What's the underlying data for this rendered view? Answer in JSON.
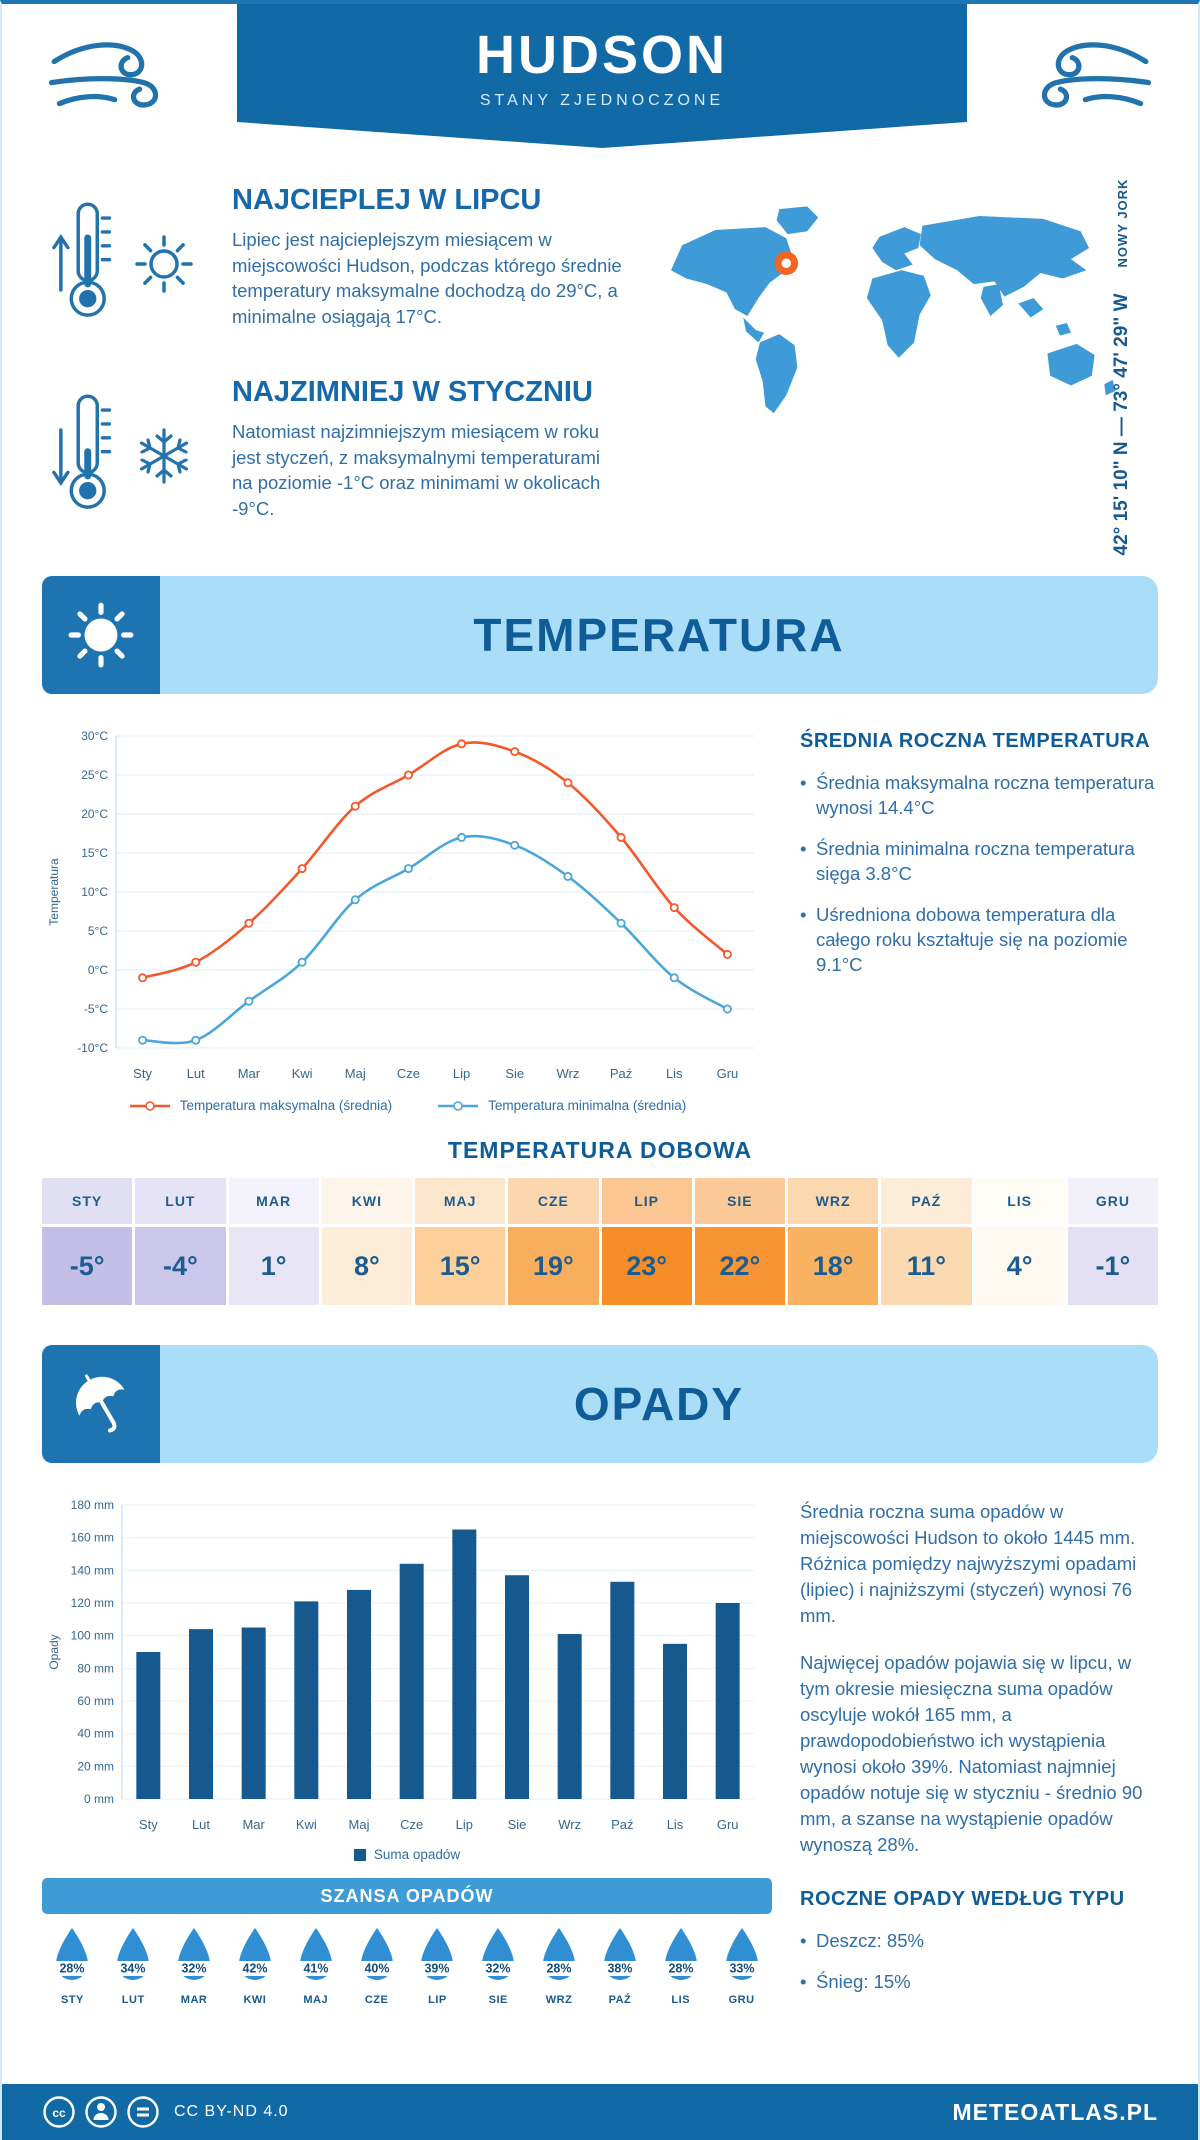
{
  "header": {
    "title": "HUDSON",
    "subtitle": "STANY ZJEDNOCZONE"
  },
  "intro": {
    "warm": {
      "title": "NAJCIEPLEJ W LIPCU",
      "text": "Lipiec jest najcieplejszym miesiącem w miejscowości Hudson, podczas którego średnie temperatury maksymalne dochodzą do 29°C, a minimalne osiągają 17°C."
    },
    "cold": {
      "title": "NAJZIMNIEJ W STYCZNIU",
      "text": "Natomiast najzimniejszym miesiącem w roku jest styczeń, z maksymalnymi temperaturami na poziomie -1°C oraz minimami w okolicach -9°C."
    },
    "coordinates": "42° 15' 10\" N — 73° 47' 29\" W",
    "region": "NOWY JORK"
  },
  "chart_data": [
    {
      "id": "temperature",
      "type": "line",
      "title": "TEMPERATURA",
      "categories": [
        "Sty",
        "Lut",
        "Mar",
        "Kwi",
        "Maj",
        "Cze",
        "Lip",
        "Sie",
        "Wrz",
        "Paź",
        "Lis",
        "Gru"
      ],
      "ylabel": "Temperatura",
      "ylim": [
        -10,
        30
      ],
      "ytick_step": 5,
      "ytick_suffix": "°C",
      "grid": true,
      "legend_position": "bottom",
      "series": [
        {
          "name": "Temperatura maksymalna (średnia)",
          "color": "#f4582a",
          "values": [
            -1,
            1,
            6,
            13,
            21,
            25,
            29,
            28,
            24,
            17,
            8,
            2
          ]
        },
        {
          "name": "Temperatura minimalna (średnia)",
          "color": "#4ba6da",
          "values": [
            -9,
            -9,
            -4,
            1,
            9,
            13,
            17,
            16,
            12,
            6,
            -1,
            -5
          ]
        }
      ]
    },
    {
      "id": "precipitation",
      "type": "bar",
      "title": "OPADY",
      "categories": [
        "Sty",
        "Lut",
        "Mar",
        "Kwi",
        "Maj",
        "Cze",
        "Lip",
        "Sie",
        "Wrz",
        "Paź",
        "Lis",
        "Gru"
      ],
      "values": [
        90,
        104,
        105,
        121,
        128,
        144,
        165,
        137,
        101,
        133,
        95,
        120
      ],
      "ylabel": "Opady",
      "ylim": [
        0,
        180
      ],
      "ytick_step": 20,
      "ytick_suffix": " mm",
      "grid": true,
      "legend": "Suma opadów",
      "bar_color": "#15598f",
      "legend_position": "bottom"
    }
  ],
  "temperature": {
    "section_title": "TEMPERATURA",
    "summary_title": "ŚREDNIA ROCZNA TEMPERATURA",
    "bullets": [
      "Średnia maksymalna roczna temperatura wynosi 14.4°C",
      "Średnia minimalna roczna temperatura sięga 3.8°C",
      "Uśredniona dobowa temperatura dla całego roku kształtuje się na poziomie 9.1°C"
    ],
    "daily_title": "TEMPERATURA DOBOWA",
    "daily": {
      "months": [
        "STY",
        "LUT",
        "MAR",
        "KWI",
        "MAJ",
        "CZE",
        "LIP",
        "SIE",
        "WRZ",
        "PAŹ",
        "LIS",
        "GRU"
      ],
      "values": [
        "-5°",
        "-4°",
        "1°",
        "8°",
        "15°",
        "19°",
        "23°",
        "22°",
        "18°",
        "11°",
        "4°",
        "-1°"
      ],
      "header_colors": [
        "#e1dff3",
        "#e5e3f5",
        "#f3f2fa",
        "#fef5ea",
        "#fde7cc",
        "#fcd6ae",
        "#fbc691",
        "#fbca98",
        "#fcd8b0",
        "#fdecd7",
        "#fffcf7",
        "#f1f0f9"
      ],
      "value_colors": [
        "#c3bfe7",
        "#cbc7eb",
        "#e8e6f6",
        "#fdecd7",
        "#fccf9b",
        "#f9ae5e",
        "#f68d26",
        "#f79434",
        "#f9b162",
        "#fcdab1",
        "#fef8f0",
        "#e3e0f3"
      ]
    }
  },
  "precipitation": {
    "section_title": "OPADY",
    "text1": "Średnia roczna suma opadów w miejscowości Hudson to około 1445 mm. Różnica pomiędzy najwyższymi opadami (lipiec) i najniższymi (styczeń) wynosi 76 mm.",
    "text2": "Najwięcej opadów pojawia się w lipcu, w tym okresie miesięczna suma opadów oscyluje wokół 165 mm, a prawdopodobieństwo ich wystąpienia wynosi około 39%. Natomiast najmniej opadów notuje się w styczniu - średnio 90 mm, a szanse na wystąpienie opadów wynoszą 28%.",
    "chance_title": "SZANSA OPADÓW",
    "chance": {
      "months": [
        "STY",
        "LUT",
        "MAR",
        "KWI",
        "MAJ",
        "CZE",
        "LIP",
        "SIE",
        "WRZ",
        "PAŹ",
        "LIS",
        "GRU"
      ],
      "values": [
        "28%",
        "34%",
        "32%",
        "42%",
        "41%",
        "40%",
        "39%",
        "32%",
        "28%",
        "38%",
        "28%",
        "33%"
      ]
    },
    "type_title": "ROCZNE OPADY WEDŁUG TYPU",
    "type_bullets": [
      "Deszcz: 85%",
      "Śnieg: 15%"
    ]
  },
  "footer": {
    "license": "CC BY-ND 4.0",
    "brand": "METEOATLAS.PL"
  },
  "colors": {
    "primary_dark": "#1169a6",
    "band_light": "#a9ddf8",
    "heading": "#0e5c98",
    "body_text": "#2f6ea6",
    "map_fill": "#3f9bd8",
    "marker": "#f26522",
    "droplet": "#2f8fd2",
    "chance_banner": "#3e9bd5"
  }
}
